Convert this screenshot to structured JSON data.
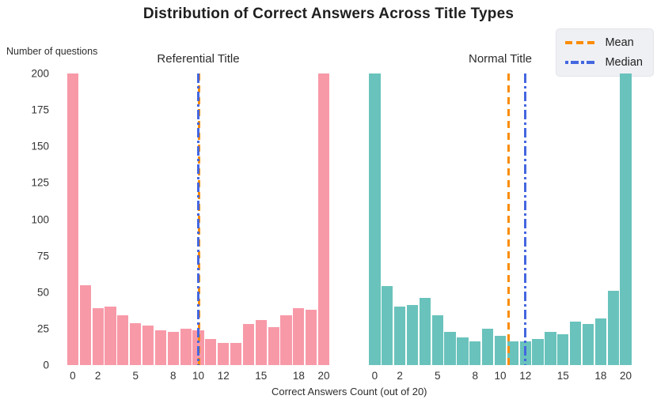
{
  "chart_data": {
    "type": "bar",
    "title": "Distribution of Correct Answers Across Title Types",
    "ylabel": "Number of questions",
    "xlabel": "Correct Answers Count (out of 20)",
    "ylim": [
      0,
      200
    ],
    "yticks": [
      0,
      25,
      50,
      75,
      100,
      125,
      150,
      175,
      200
    ],
    "xticks": [
      0,
      2,
      5,
      8,
      10,
      12,
      15,
      18,
      20
    ],
    "categories": [
      0,
      1,
      2,
      3,
      4,
      5,
      6,
      7,
      8,
      9,
      10,
      11,
      12,
      13,
      14,
      15,
      16,
      17,
      18,
      19,
      20
    ],
    "grid": false,
    "legend_position": "upper right",
    "legend": {
      "mean_label": "Mean",
      "median_label": "Median",
      "mean_color": "#fb8c05",
      "median_color": "#4467e0"
    },
    "series": [
      {
        "name": "Referential Title",
        "color": "#f899a8",
        "values": [
          200,
          55,
          39,
          40,
          34,
          29,
          27,
          24,
          23,
          25,
          24,
          18,
          15,
          15,
          28,
          31,
          26,
          34,
          39,
          38,
          200
        ],
        "mean": 10.08,
        "median": 10
      },
      {
        "name": "Normal Title",
        "color": "#69c3bc",
        "values": [
          200,
          54,
          40,
          41,
          46,
          34,
          23,
          19,
          16,
          25,
          20,
          16,
          16,
          18,
          23,
          21,
          30,
          28,
          32,
          51,
          200
        ],
        "mean": 10.65,
        "median": 12
      }
    ]
  }
}
